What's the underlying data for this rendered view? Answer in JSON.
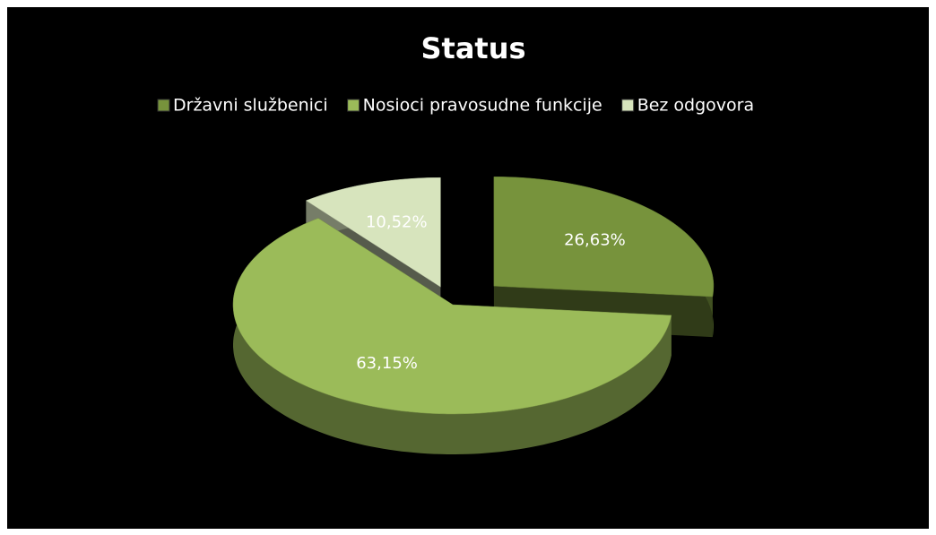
{
  "chart_data": {
    "type": "pie",
    "title": "Status",
    "categories": [
      "Državni službenici",
      "Nosioci pravosudne funkcije",
      "Bez odgovora"
    ],
    "values": [
      26.63,
      63.15,
      10.52
    ],
    "value_labels": [
      "26,63%",
      "63,15%",
      "10,52%"
    ],
    "colors": [
      "#77933c",
      "#9bbb59",
      "#d7e4bd"
    ],
    "legend": "top"
  }
}
